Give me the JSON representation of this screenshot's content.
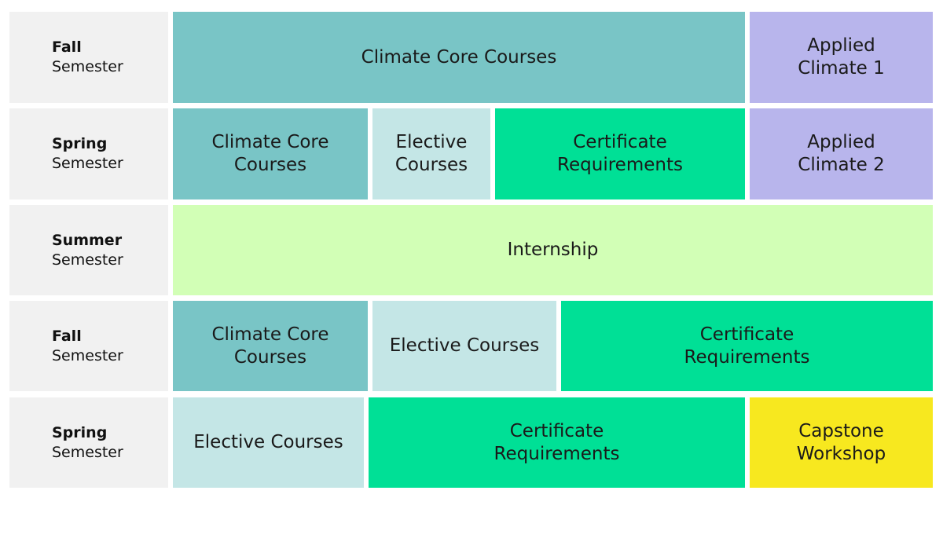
{
  "colors": {
    "core": "#79c5c6",
    "elective": "#c4e6e6",
    "certificate": "#00e096",
    "applied": "#b8b5ec",
    "internship": "#d2ffb6",
    "capstone": "#f7e81f",
    "label": "#f1f1f1"
  },
  "rows": [
    {
      "term": "Fall",
      "sub": "Semester",
      "blocks": [
        {
          "label": "Climate Core Courses",
          "kind": "core"
        },
        {
          "label": "Applied Climate 1",
          "kind": "applied"
        }
      ]
    },
    {
      "term": "Spring",
      "sub": "Semester",
      "blocks": [
        {
          "label": "Climate Core Courses",
          "kind": "core"
        },
        {
          "label": "Elective Courses",
          "kind": "elective"
        },
        {
          "label": "Certificate Requirements",
          "kind": "certificate"
        },
        {
          "label": "Applied Climate 2",
          "kind": "applied"
        }
      ]
    },
    {
      "term": "Summer",
      "sub": "Semester",
      "blocks": [
        {
          "label": "Internship",
          "kind": "internship"
        }
      ]
    },
    {
      "term": "Fall",
      "sub": "Semester",
      "blocks": [
        {
          "label": "Climate Core Courses",
          "kind": "core"
        },
        {
          "label": "Elective Courses",
          "kind": "elective"
        },
        {
          "label": "Certificate Requirements",
          "kind": "certificate"
        }
      ]
    },
    {
      "term": "Spring",
      "sub": "Semester",
      "blocks": [
        {
          "label": "Elective Courses",
          "kind": "elective"
        },
        {
          "label": "Certificate Requirements",
          "kind": "certificate"
        },
        {
          "label": "Capstone Workshop",
          "kind": "capstone"
        }
      ]
    }
  ]
}
